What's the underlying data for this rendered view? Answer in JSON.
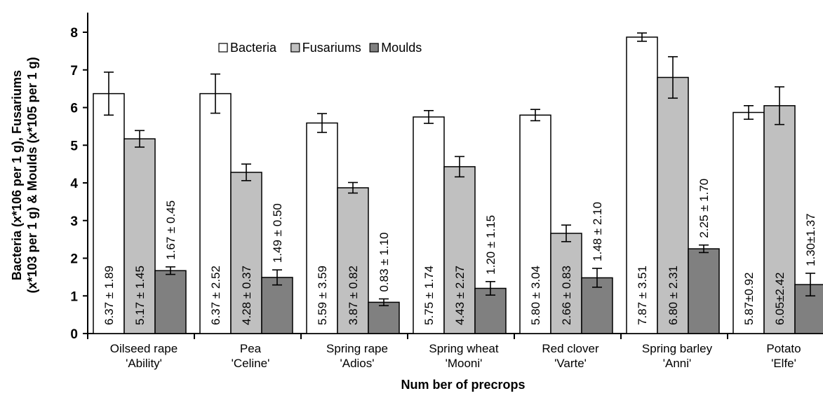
{
  "chart_data": {
    "type": "bar",
    "title": "",
    "xlabel": "Num ber of precrops",
    "ylabel_lines": [
      "Bacteria (x*106 per 1 g), Fusariums",
      "(x*103 per 1 g) & Moulds (x*105 per 1 g)"
    ],
    "ylim": [
      0,
      8
    ],
    "yticks": [
      0,
      1,
      2,
      3,
      4,
      5,
      6,
      7,
      8
    ],
    "grid": false,
    "legend_position": "top-center",
    "categories": [
      [
        "Oilseed rape",
        "'Ability'"
      ],
      [
        "Pea",
        "'Celine'"
      ],
      [
        "Spring rape",
        "'Adios'"
      ],
      [
        "Spring wheat",
        "'Mooni'"
      ],
      [
        "Red clover",
        "'Varte'"
      ],
      [
        "Spring barley",
        "'Anni'"
      ],
      [
        "Potato",
        "'Elfe'"
      ]
    ],
    "series": [
      {
        "name": "Bacteria",
        "color": "#ffffff",
        "values": [
          6.37,
          6.37,
          5.59,
          5.75,
          5.8,
          7.87,
          5.87
        ],
        "errors": [
          0.57,
          0.52,
          0.25,
          0.17,
          0.15,
          0.11,
          0.18
        ],
        "labels": [
          "6.37 ± 1.89",
          "6.37 ± 2.52",
          "5.59 ± 3.59",
          "5.75 ± 1.74",
          "5.80 ± 3.04",
          "7.87 ± 3.51",
          "5.87±0.92"
        ]
      },
      {
        "name": "Fusariums",
        "color": "#c0c0c0",
        "values": [
          5.17,
          4.28,
          3.87,
          4.43,
          2.66,
          6.8,
          6.05
        ],
        "errors": [
          0.22,
          0.22,
          0.14,
          0.27,
          0.22,
          0.55,
          0.5
        ],
        "labels": [
          "5.17 ± 1.45",
          "4.28 ± 0.37",
          "3.87 ± 0.82",
          "4.43 ± 2.27",
          "2.66 ± 0.83",
          "6.80 ± 2.31",
          "6.05±2.42"
        ]
      },
      {
        "name": "Moulds",
        "color": "#808080",
        "values": [
          1.67,
          1.49,
          0.83,
          1.2,
          1.48,
          2.25,
          1.3
        ],
        "errors": [
          0.1,
          0.2,
          0.09,
          0.18,
          0.25,
          0.1,
          0.3
        ],
        "labels": [
          "1.67 ± 0.45",
          "1.49 ± 0.50",
          "0.83 ± 1.10",
          "1.20 ± 1.15",
          "1.48 ± 2.10",
          "2.25 ± 1.70",
          "1.30±1.37"
        ]
      }
    ]
  }
}
